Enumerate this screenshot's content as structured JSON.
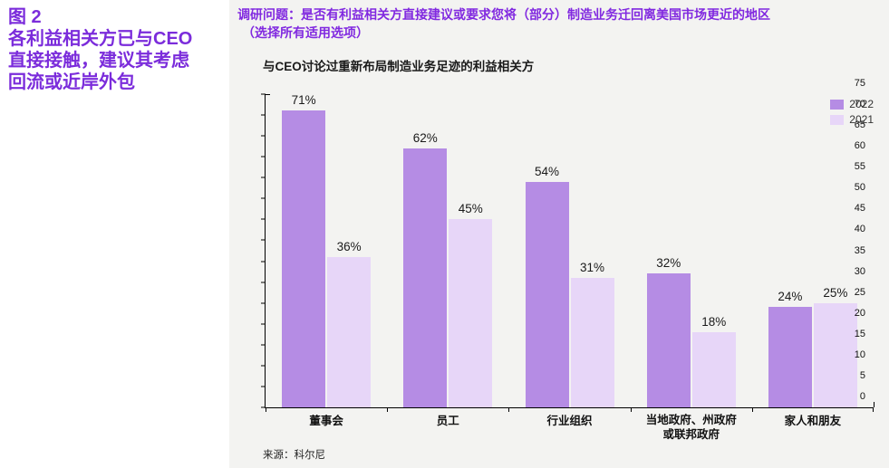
{
  "figure": {
    "label": "图 2",
    "title_lines": [
      "各利益相关方已与CEO",
      "直接接触，建议其考虑",
      "回流或近岸外包"
    ]
  },
  "question": {
    "line1": "调研问题：是否有利益相关方直接建议或要求您将（部分）制造业务迁回离美国市场更近的地区",
    "line2": "（选择所有适用选项）"
  },
  "chart_data": {
    "type": "bar",
    "title": "与CEO讨论过重新布局制造业务足迹的利益相关方",
    "categories": [
      "董事会",
      "员工",
      "行业组织",
      "当地政府、州政府或联邦政府",
      "家人和朋友"
    ],
    "series": [
      {
        "name": "2022",
        "color": "#b58ce4",
        "values": [
          71,
          62,
          54,
          32,
          24
        ]
      },
      {
        "name": "2021",
        "color": "#e7d6f8",
        "values": [
          36,
          45,
          31,
          18,
          25
        ]
      }
    ],
    "value_suffix": "%",
    "ylim": [
      0,
      75
    ],
    "ytick_step": 5,
    "grid": false,
    "legend_position": "top-right"
  },
  "source": "来源：科尔尼",
  "colors": {
    "accent_purple": "#7b2cdb",
    "question_purple": "#8129e0",
    "panel_bg": "#f3f3f1",
    "bar_2022": "#b58ce4",
    "bar_2021": "#e7d6f8",
    "axis_black": "#000000"
  }
}
